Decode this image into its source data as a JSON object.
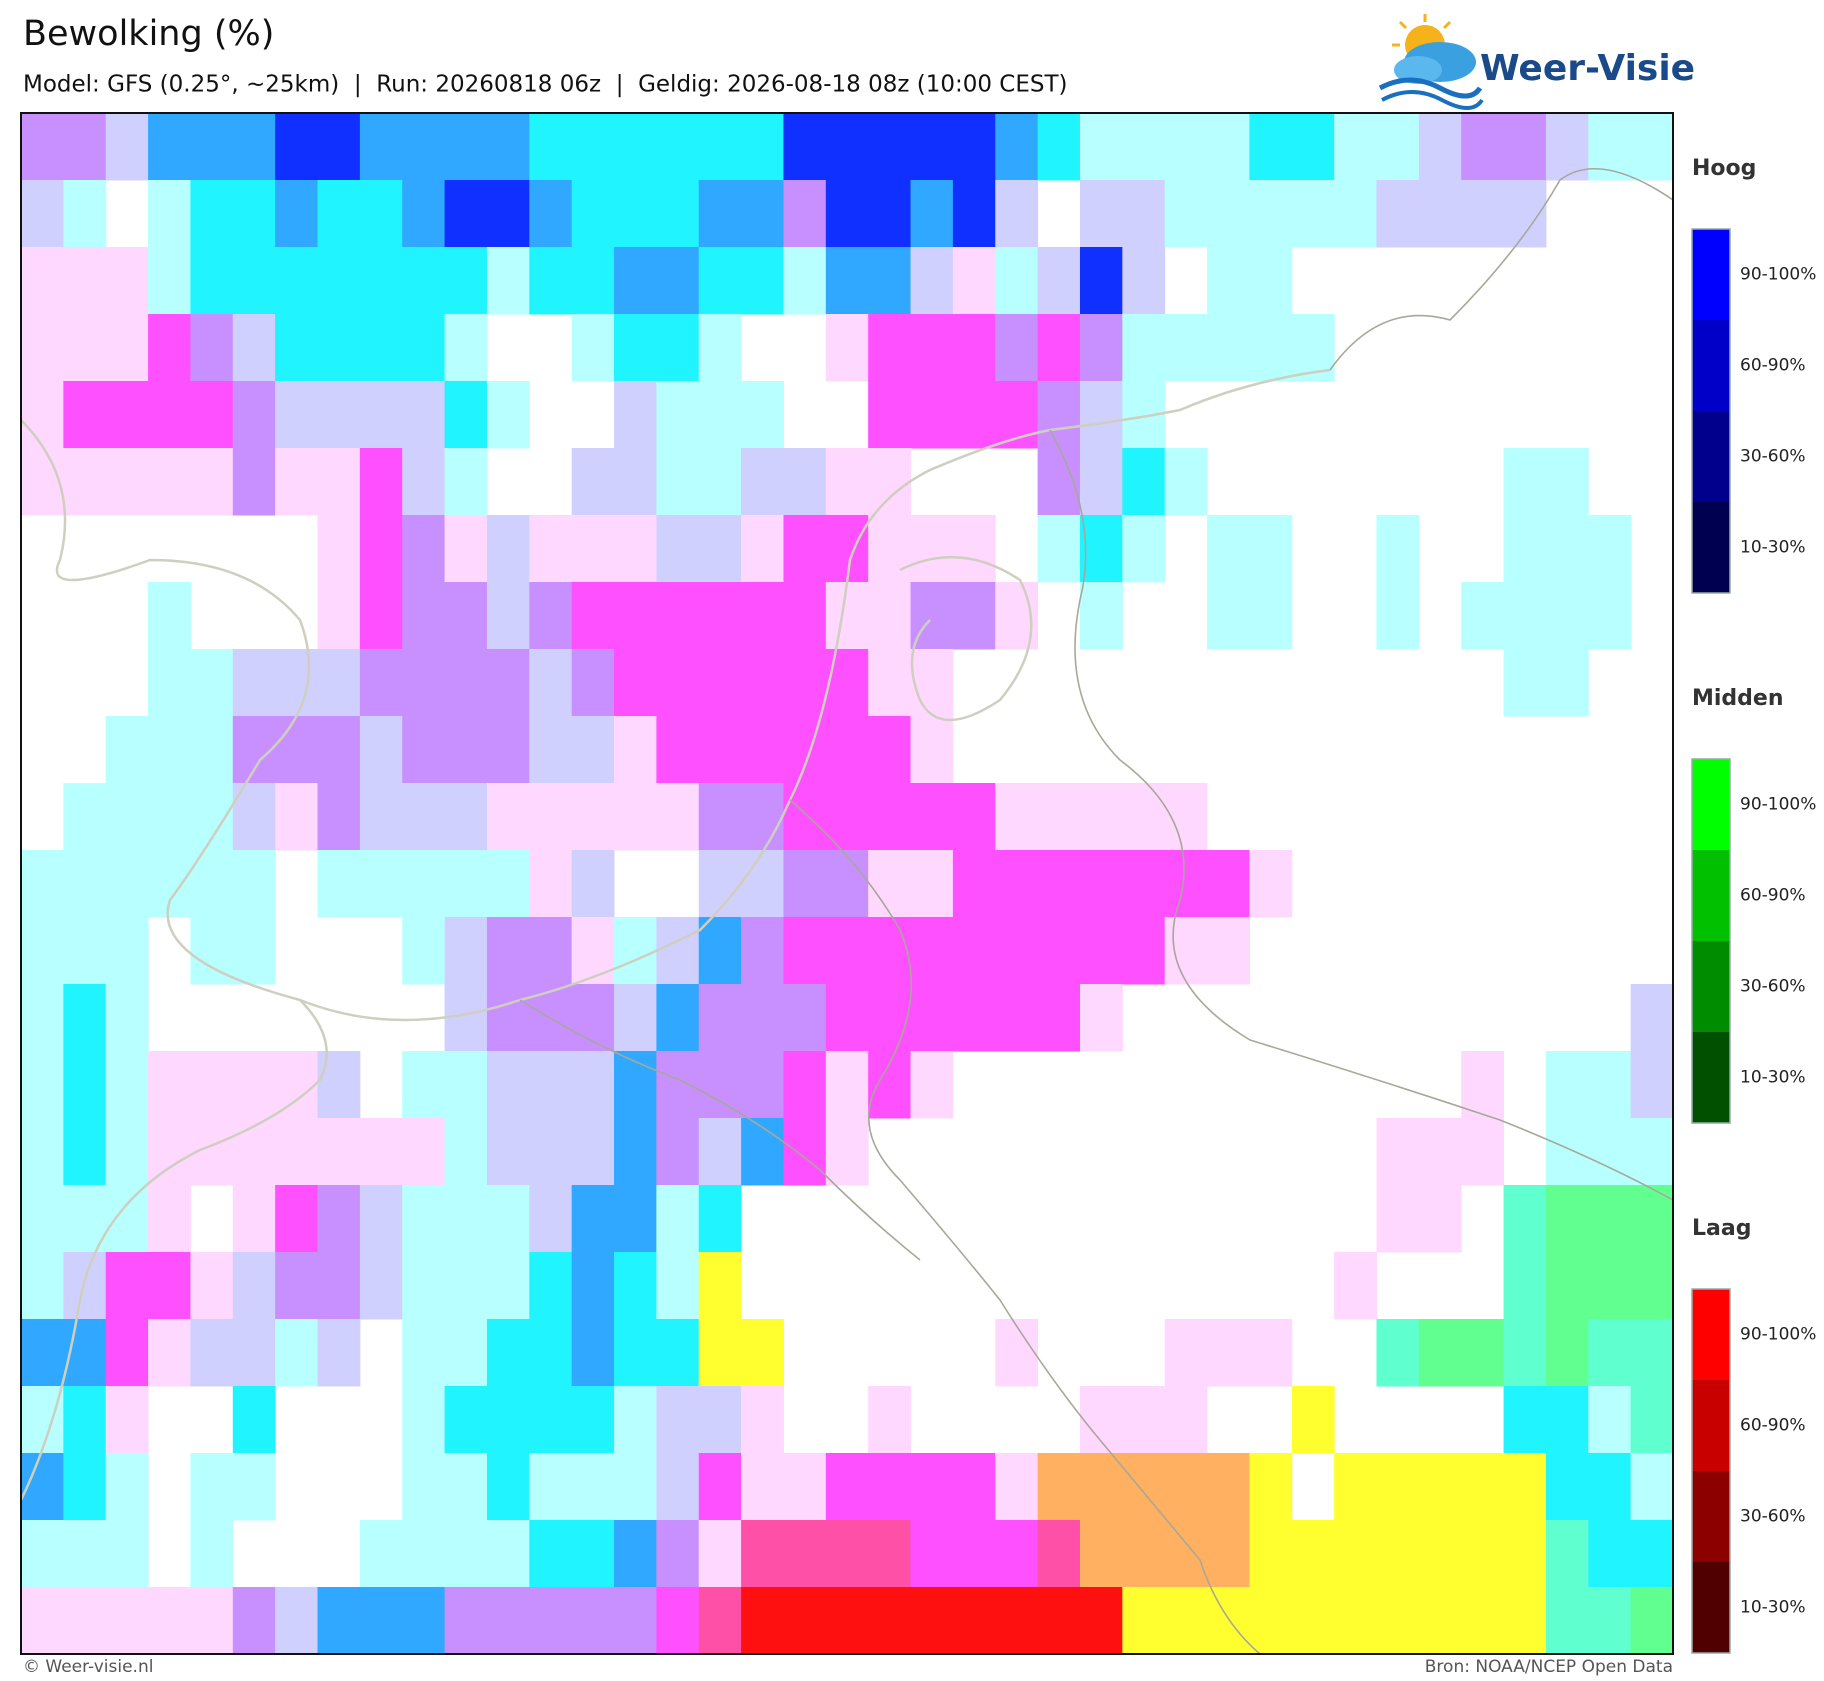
{
  "header": {
    "title": "Bewolking (%)",
    "subtitle": "Model: GFS (0.25°, ~25km)  |  Run: 20260818 06z  |  Geldig: 2026-08-18 08z (10:00 CEST)",
    "logo": "Weer-Visie"
  },
  "legend": {
    "groups": [
      {
        "title": "Hoog",
        "labels": [
          "90-100%",
          "60-90%",
          "30-60%",
          "10-30%"
        ]
      },
      {
        "title": "Midden",
        "labels": [
          "90-100%",
          "60-90%",
          "30-60%",
          "10-30%"
        ]
      },
      {
        "title": "Laag",
        "labels": [
          "90-100%",
          "60-90%",
          "30-60%",
          "10-30%"
        ]
      }
    ]
  },
  "footer": {
    "left": "© Weer-visie.nl",
    "right": "Bron: NOAA/NCEP Open Data"
  }
}
